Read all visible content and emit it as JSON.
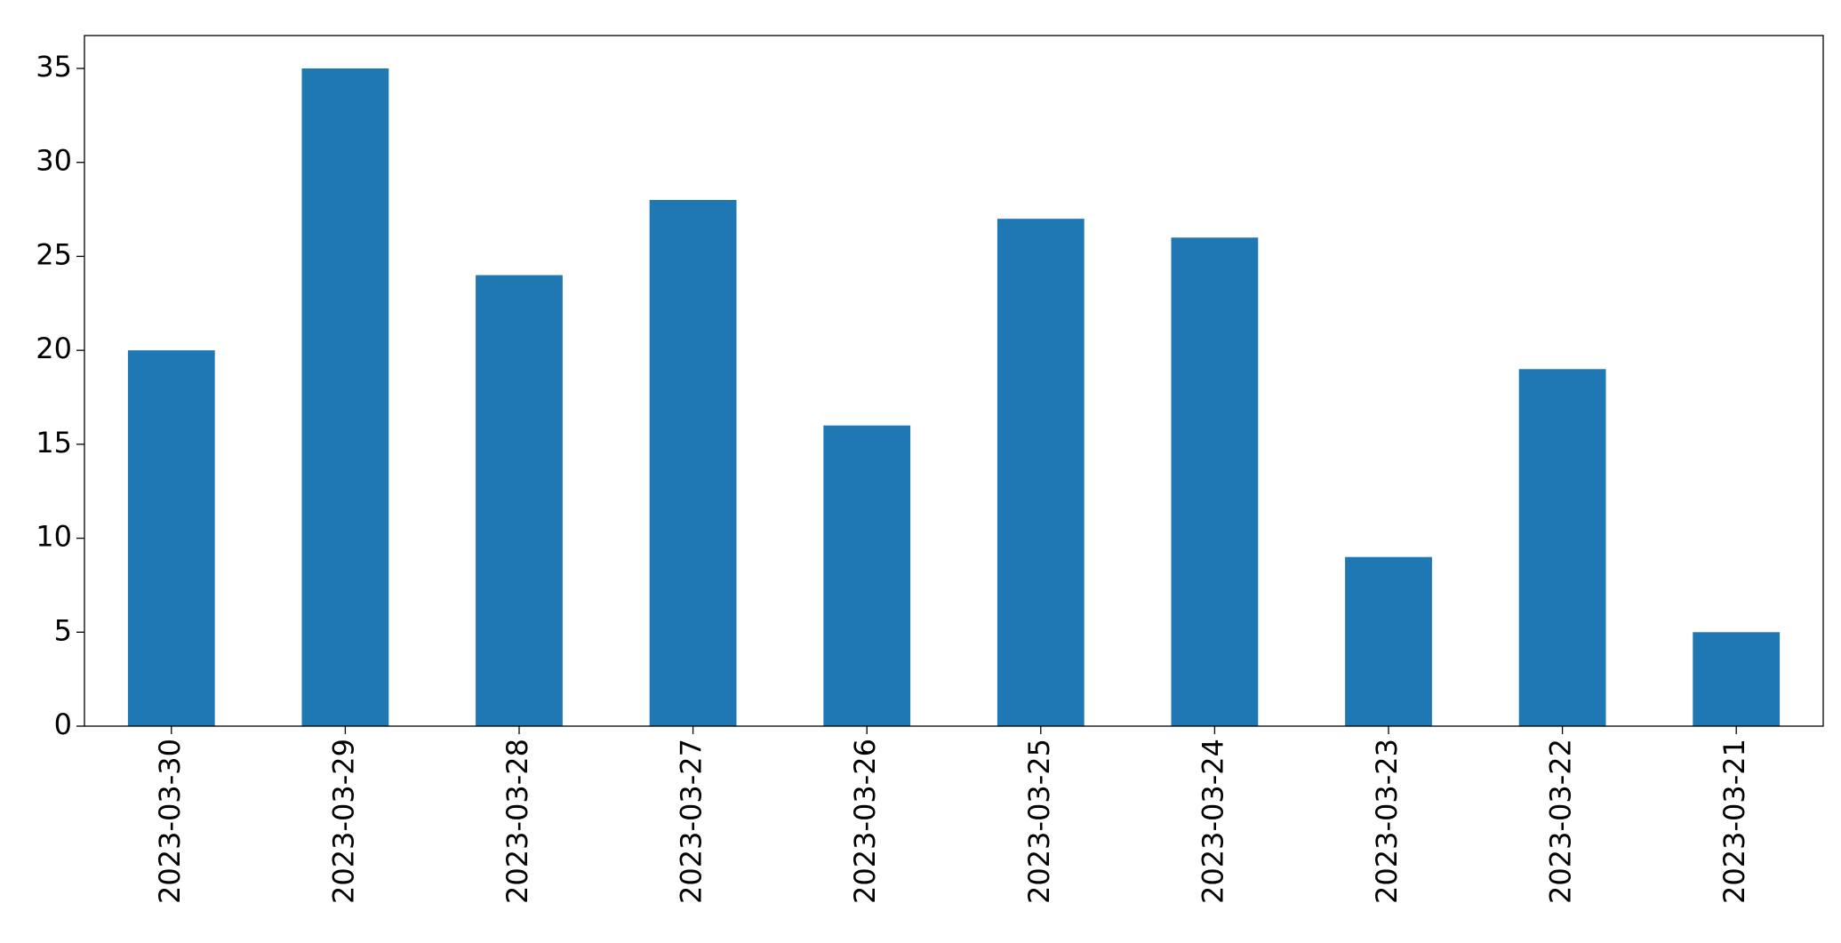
{
  "chart_data": {
    "type": "bar",
    "categories": [
      "2023-03-30",
      "2023-03-29",
      "2023-03-28",
      "2023-03-27",
      "2023-03-26",
      "2023-03-25",
      "2023-03-24",
      "2023-03-23",
      "2023-03-22",
      "2023-03-21"
    ],
    "values": [
      20,
      35,
      24,
      28,
      16,
      27,
      26,
      9,
      19,
      5
    ],
    "color": "#1f77b4",
    "ylim": [
      0,
      36.75
    ],
    "yticks": [
      0,
      5,
      10,
      15,
      20,
      25,
      30,
      35
    ],
    "grid": false
  }
}
